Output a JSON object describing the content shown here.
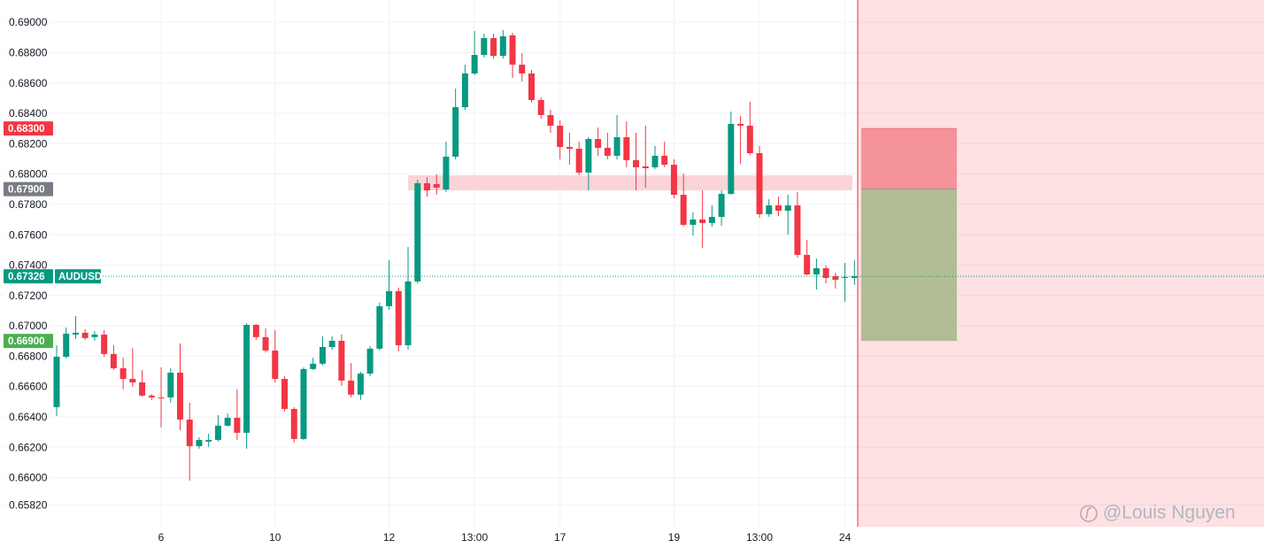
{
  "chart_data": {
    "type": "candlestick",
    "symbol": "AUDUSD",
    "up_color": "#089981",
    "down_color": "#f23645",
    "grid": true,
    "categories": [
      null,
      null,
      null,
      null,
      null,
      null,
      null,
      null,
      null,
      null,
      null,
      "6",
      null,
      null,
      null,
      null,
      null,
      null,
      null,
      null,
      null,
      null,
      null,
      "10",
      null,
      null,
      null,
      null,
      null,
      null,
      null,
      null,
      null,
      null,
      null,
      "12",
      null,
      null,
      null,
      null,
      null,
      null,
      null,
      null,
      "13:00",
      null,
      null,
      null,
      null,
      null,
      null,
      null,
      null,
      "17",
      null,
      null,
      null,
      null,
      null,
      null,
      null,
      null,
      null,
      null,
      null,
      "19",
      null,
      null,
      null,
      null,
      null,
      null,
      null,
      null,
      "13:00",
      null,
      null,
      null,
      null,
      null,
      null,
      null,
      null,
      "24",
      null,
      null
    ],
    "open": [
      0.66464,
      0.66796,
      0.66942,
      0.66954,
      0.66925,
      0.66942,
      0.66814,
      0.6672,
      0.6665,
      0.66627,
      0.6654,
      0.66528,
      0.66528,
      0.66691,
      0.66382,
      0.66207,
      0.66237,
      0.66248,
      0.66342,
      0.66394,
      0.66295,
      0.67006,
      0.66925,
      0.66837,
      0.6665,
      0.66452,
      0.66254,
      0.66715,
      0.6675,
      0.6686,
      0.66901,
      0.66639,
      0.66546,
      0.66685,
      0.66849,
      0.67129,
      0.67228,
      0.66872,
      0.67292,
      0.67939,
      0.67933,
      0.67898,
      0.68114,
      0.6844,
      0.68662,
      0.68784,
      0.68895,
      0.68778,
      0.68913,
      0.6872,
      0.68662,
      0.68487,
      0.68388,
      0.68318,
      0.68178,
      0.68166,
      0.68009,
      0.6823,
      0.68172,
      0.6812,
      0.68242,
      0.68091,
      0.6805,
      0.68044,
      0.6812,
      0.68061,
      0.67863,
      0.67665,
      0.677,
      0.67677,
      0.67717,
      0.67869,
      0.6833,
      0.68318,
      0.68137,
      0.67735,
      0.67793,
      0.67758,
      0.67793,
      0.67467,
      0.67338,
      0.67379,
      0.67327,
      0.67315,
      0.67315,
      0.67321
    ],
    "high": [
      0.66872,
      0.66989,
      0.67064,
      0.66977,
      0.66965,
      0.66971,
      0.66872,
      0.6679,
      0.66855,
      0.66709,
      0.66551,
      0.66726,
      0.6672,
      0.66884,
      0.66493,
      0.66266,
      0.66289,
      0.66411,
      0.66423,
      0.66581,
      0.67018,
      0.67012,
      0.66983,
      0.66971,
      0.66668,
      0.66464,
      0.66726,
      0.6679,
      0.6693,
      0.6693,
      0.66942,
      0.66755,
      0.66697,
      0.66866,
      0.67152,
      0.67432,
      0.67251,
      0.67519,
      0.67962,
      0.6798,
      0.67997,
      0.68213,
      0.68563,
      0.6872,
      0.68942,
      0.68924,
      0.68924,
      0.68948,
      0.6893,
      0.68796,
      0.68685,
      0.68504,
      0.68423,
      0.68353,
      0.68271,
      0.68213,
      0.68242,
      0.68306,
      0.68271,
      0.68388,
      0.68347,
      0.68271,
      0.68318,
      0.68184,
      0.68213,
      0.68096,
      0.68003,
      0.67747,
      0.67892,
      0.67793,
      0.67892,
      0.68411,
      0.68382,
      0.68475,
      0.68184,
      0.67834,
      0.67851,
      0.67863,
      0.67881,
      0.67566,
      0.67443,
      0.67397,
      0.6735,
      0.67414,
      0.67432,
      0.67338
    ],
    "low": [
      0.66406,
      0.66785,
      0.66913,
      0.66907,
      0.66901,
      0.66796,
      0.66709,
      0.66581,
      0.66598,
      0.66534,
      0.66511,
      0.6633,
      0.66493,
      0.66312,
      0.6598,
      0.6619,
      0.66202,
      0.66237,
      0.66336,
      0.66248,
      0.6619,
      0.66907,
      0.66825,
      0.66627,
      0.66435,
      0.66231,
      0.66248,
      0.66709,
      0.66738,
      0.66843,
      0.66604,
      0.66528,
      0.66511,
      0.66668,
      0.66837,
      0.67105,
      0.66831,
      0.66843,
      0.6728,
      0.67851,
      0.67863,
      0.67881,
      0.68096,
      0.68423,
      0.6865,
      0.68767,
      0.68761,
      0.68761,
      0.68633,
      0.68609,
      0.68469,
      0.68365,
      0.68271,
      0.68096,
      0.68061,
      0.67991,
      0.67892,
      0.6812,
      0.68096,
      0.68096,
      0.68044,
      0.67892,
      0.6791,
      0.68032,
      0.68044,
      0.6784,
      0.67653,
      0.67595,
      0.67513,
      0.67653,
      0.67659,
      0.67863,
      0.68067,
      0.68126,
      0.67712,
      0.67717,
      0.67723,
      0.67601,
      0.67449,
      0.67333,
      0.67239,
      0.6728,
      0.67245,
      0.67158,
      0.67269,
      0.67315
    ],
    "close": [
      0.66796,
      0.66948,
      0.66954,
      0.66919,
      0.66942,
      0.66814,
      0.6672,
      0.6665,
      0.66627,
      0.6654,
      0.66528,
      0.66522,
      0.66691,
      0.66382,
      0.66207,
      0.66248,
      0.66248,
      0.66342,
      0.66394,
      0.66295,
      0.67006,
      0.66925,
      0.66837,
      0.6665,
      0.66452,
      0.66254,
      0.66715,
      0.6675,
      0.6686,
      0.66901,
      0.66639,
      0.66546,
      0.66685,
      0.66849,
      0.67129,
      0.67228,
      0.66872,
      0.67292,
      0.67939,
      0.67892,
      0.6791,
      0.68114,
      0.6844,
      0.68662,
      0.68784,
      0.68895,
      0.68778,
      0.68907,
      0.6872,
      0.68662,
      0.68487,
      0.68388,
      0.68318,
      0.68178,
      0.68166,
      0.68009,
      0.6823,
      0.68172,
      0.6812,
      0.68242,
      0.68091,
      0.68044,
      0.68038,
      0.6812,
      0.68061,
      0.67863,
      0.67665,
      0.677,
      0.67677,
      0.67717,
      0.67869,
      0.6833,
      0.68318,
      0.68137,
      0.67735,
      0.67793,
      0.67758,
      0.67793,
      0.67467,
      0.67338,
      0.67379,
      0.67315,
      0.67303,
      0.67321,
      0.67327,
      0.67326
    ],
    "ylim": [
      0.65676,
      0.69146
    ],
    "yticks": [
      {
        "value": 0.69,
        "label": "0.69000"
      },
      {
        "value": 0.688,
        "label": "0.68800"
      },
      {
        "value": 0.686,
        "label": "0.68600"
      },
      {
        "value": 0.684,
        "label": "0.68400"
      },
      {
        "value": 0.682,
        "label": "0.68200"
      },
      {
        "value": 0.68,
        "label": "0.68000"
      },
      {
        "value": 0.678,
        "label": "0.67800"
      },
      {
        "value": 0.676,
        "label": "0.67600"
      },
      {
        "value": 0.674,
        "label": "0.67400"
      },
      {
        "value": 0.672,
        "label": "0.67200"
      },
      {
        "value": 0.67,
        "label": "0.67000"
      },
      {
        "value": 0.668,
        "label": "0.66800"
      },
      {
        "value": 0.666,
        "label": "0.66600"
      },
      {
        "value": 0.664,
        "label": "0.66400"
      },
      {
        "value": 0.662,
        "label": "0.66200"
      },
      {
        "value": 0.66,
        "label": "0.66000"
      },
      {
        "value": 0.6582,
        "label": "0.65820"
      }
    ],
    "zone": {
      "top": 0.67991,
      "bottom": 0.67892,
      "color": "#fad4d7"
    },
    "position": {
      "stop": {
        "value": 0.683,
        "label": "0.68300",
        "color": "#f23645"
      },
      "entry": {
        "value": 0.679,
        "label": "0.67900",
        "color": "#787b86"
      },
      "target": {
        "value": 0.669,
        "label": "0.66900",
        "color": "#4caf50"
      },
      "loss_color": "#f5939a",
      "profit_color": "#b1bd94"
    },
    "watermark": "@Louis Nguyen"
  }
}
